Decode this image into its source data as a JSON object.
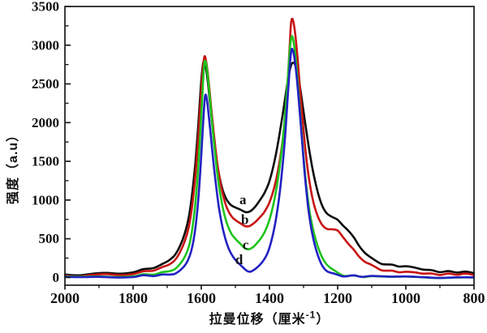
{
  "figure": {
    "background": "#ffffff"
  },
  "chart_data": {
    "type": "line",
    "title": "",
    "xlabel": "拉曼位移（厘米-1）",
    "xlabel_prefix": "拉曼位移（厘米",
    "xlabel_sup": "-1",
    "xlabel_suffix": "）",
    "ylabel": "强度（a.u）",
    "legend_position": "none",
    "grid": false,
    "x_axis": {
      "reversed": true,
      "data_max": 2000,
      "data_min": 800,
      "major_ticks": [
        2000,
        1800,
        1600,
        1400,
        1200,
        1000,
        800
      ],
      "minor_tick_step": 100
    },
    "y_axis": {
      "data_min": 0,
      "data_max": 3500,
      "display_min": -100,
      "major_ticks": [
        0,
        500,
        1000,
        1500,
        2000,
        2500,
        3000,
        3500
      ],
      "minor_tick_step": 250
    },
    "axis_color": "#1a1a1a",
    "series": [
      {
        "id": "a",
        "label": "a",
        "color": "#0d0d0d",
        "label_pos": {
          "x": 1478,
          "y": 1000
        },
        "points": [
          [
            2000,
            40
          ],
          [
            1960,
            40
          ],
          [
            1920,
            42
          ],
          [
            1880,
            48
          ],
          [
            1840,
            58
          ],
          [
            1800,
            75
          ],
          [
            1770,
            95
          ],
          [
            1740,
            125
          ],
          [
            1715,
            165
          ],
          [
            1695,
            225
          ],
          [
            1678,
            300
          ],
          [
            1662,
            410
          ],
          [
            1648,
            570
          ],
          [
            1636,
            800
          ],
          [
            1626,
            1120
          ],
          [
            1617,
            1500
          ],
          [
            1609,
            1950
          ],
          [
            1602,
            2420
          ],
          [
            1596,
            2710
          ],
          [
            1592,
            2780
          ],
          [
            1587,
            2720
          ],
          [
            1580,
            2500
          ],
          [
            1572,
            2160
          ],
          [
            1563,
            1790
          ],
          [
            1554,
            1480
          ],
          [
            1545,
            1260
          ],
          [
            1536,
            1110
          ],
          [
            1525,
            1010
          ],
          [
            1512,
            945
          ],
          [
            1498,
            900
          ],
          [
            1484,
            865
          ],
          [
            1470,
            845
          ],
          [
            1456,
            860
          ],
          [
            1442,
            905
          ],
          [
            1428,
            985
          ],
          [
            1414,
            1100
          ],
          [
            1402,
            1230
          ],
          [
            1392,
            1380
          ],
          [
            1382,
            1570
          ],
          [
            1372,
            1810
          ],
          [
            1362,
            2090
          ],
          [
            1352,
            2390
          ],
          [
            1344,
            2610
          ],
          [
            1337,
            2740
          ],
          [
            1331,
            2770
          ],
          [
            1325,
            2740
          ],
          [
            1318,
            2630
          ],
          [
            1310,
            2440
          ],
          [
            1301,
            2170
          ],
          [
            1291,
            1870
          ],
          [
            1281,
            1580
          ],
          [
            1270,
            1310
          ],
          [
            1258,
            1090
          ],
          [
            1246,
            940
          ],
          [
            1232,
            840
          ],
          [
            1216,
            780
          ],
          [
            1200,
            745
          ],
          [
            1184,
            680
          ],
          [
            1168,
            600
          ],
          [
            1152,
            500
          ],
          [
            1136,
            400
          ],
          [
            1120,
            320
          ],
          [
            1104,
            255
          ],
          [
            1088,
            215
          ],
          [
            1072,
            190
          ],
          [
            1056,
            172
          ],
          [
            1040,
            160
          ],
          [
            1020,
            148
          ],
          [
            1000,
            140
          ],
          [
            975,
            122
          ],
          [
            950,
            106
          ],
          [
            925,
            92
          ],
          [
            900,
            82
          ],
          [
            875,
            74
          ],
          [
            850,
            68
          ],
          [
            825,
            63
          ],
          [
            800,
            60
          ]
        ]
      },
      {
        "id": "b",
        "label": "b",
        "color": "#c81414",
        "label_pos": {
          "x": 1472,
          "y": 745
        },
        "points": [
          [
            2000,
            25
          ],
          [
            1960,
            25
          ],
          [
            1920,
            27
          ],
          [
            1880,
            32
          ],
          [
            1840,
            40
          ],
          [
            1800,
            52
          ],
          [
            1770,
            68
          ],
          [
            1740,
            92
          ],
          [
            1715,
            125
          ],
          [
            1695,
            170
          ],
          [
            1678,
            235
          ],
          [
            1662,
            330
          ],
          [
            1648,
            470
          ],
          [
            1636,
            670
          ],
          [
            1626,
            960
          ],
          [
            1617,
            1330
          ],
          [
            1609,
            1790
          ],
          [
            1602,
            2280
          ],
          [
            1596,
            2650
          ],
          [
            1591,
            2840
          ],
          [
            1586,
            2790
          ],
          [
            1579,
            2560
          ],
          [
            1571,
            2200
          ],
          [
            1562,
            1810
          ],
          [
            1553,
            1470
          ],
          [
            1544,
            1220
          ],
          [
            1535,
            1040
          ],
          [
            1524,
            900
          ],
          [
            1511,
            800
          ],
          [
            1497,
            730
          ],
          [
            1483,
            685
          ],
          [
            1471,
            662
          ],
          [
            1458,
            670
          ],
          [
            1444,
            700
          ],
          [
            1430,
            755
          ],
          [
            1416,
            840
          ],
          [
            1402,
            960
          ],
          [
            1391,
            1090
          ],
          [
            1381,
            1250
          ],
          [
            1371,
            1480
          ],
          [
            1361,
            1790
          ],
          [
            1352,
            2190
          ],
          [
            1345,
            2650
          ],
          [
            1340,
            3050
          ],
          [
            1337,
            3280
          ],
          [
            1334,
            3340
          ],
          [
            1330,
            3300
          ],
          [
            1324,
            3120
          ],
          [
            1317,
            2790
          ],
          [
            1309,
            2360
          ],
          [
            1300,
            1900
          ],
          [
            1291,
            1510
          ],
          [
            1281,
            1190
          ],
          [
            1270,
            940
          ],
          [
            1258,
            780
          ],
          [
            1246,
            690
          ],
          [
            1232,
            640
          ],
          [
            1216,
            620
          ],
          [
            1200,
            605
          ],
          [
            1184,
            530
          ],
          [
            1168,
            430
          ],
          [
            1152,
            340
          ],
          [
            1136,
            262
          ],
          [
            1120,
            205
          ],
          [
            1104,
            162
          ],
          [
            1088,
            130
          ],
          [
            1072,
            108
          ],
          [
            1056,
            92
          ],
          [
            1040,
            82
          ],
          [
            1020,
            74
          ],
          [
            1000,
            68
          ],
          [
            975,
            60
          ],
          [
            950,
            54
          ],
          [
            925,
            49
          ],
          [
            900,
            45
          ],
          [
            875,
            42
          ],
          [
            850,
            39
          ],
          [
            825,
            37
          ],
          [
            800,
            35
          ]
        ]
      },
      {
        "id": "c",
        "label": "c",
        "color": "#1ec41e",
        "label_pos": {
          "x": 1470,
          "y": 420
        },
        "points": [
          [
            2000,
            15
          ],
          [
            1950,
            15
          ],
          [
            1900,
            16
          ],
          [
            1850,
            18
          ],
          [
            1800,
            23
          ],
          [
            1770,
            30
          ],
          [
            1740,
            42
          ],
          [
            1715,
            60
          ],
          [
            1695,
            85
          ],
          [
            1678,
            120
          ],
          [
            1662,
            175
          ],
          [
            1648,
            265
          ],
          [
            1636,
            410
          ],
          [
            1627,
            620
          ],
          [
            1618,
            930
          ],
          [
            1610,
            1350
          ],
          [
            1603,
            1840
          ],
          [
            1597,
            2330
          ],
          [
            1593,
            2650
          ],
          [
            1590,
            2780
          ],
          [
            1586,
            2760
          ],
          [
            1580,
            2560
          ],
          [
            1572,
            2190
          ],
          [
            1563,
            1760
          ],
          [
            1554,
            1380
          ],
          [
            1545,
            1090
          ],
          [
            1536,
            880
          ],
          [
            1525,
            710
          ],
          [
            1512,
            580
          ],
          [
            1498,
            490
          ],
          [
            1484,
            420
          ],
          [
            1472,
            375
          ],
          [
            1462,
            368
          ],
          [
            1450,
            385
          ],
          [
            1438,
            425
          ],
          [
            1426,
            490
          ],
          [
            1414,
            590
          ],
          [
            1402,
            730
          ],
          [
            1391,
            900
          ],
          [
            1381,
            1110
          ],
          [
            1371,
            1400
          ],
          [
            1361,
            1780
          ],
          [
            1352,
            2240
          ],
          [
            1344,
            2720
          ],
          [
            1339,
            3010
          ],
          [
            1335,
            3110
          ],
          [
            1331,
            3080
          ],
          [
            1325,
            2900
          ],
          [
            1318,
            2560
          ],
          [
            1310,
            2110
          ],
          [
            1302,
            1660
          ],
          [
            1293,
            1230
          ],
          [
            1284,
            900
          ],
          [
            1274,
            650
          ],
          [
            1264,
            470
          ],
          [
            1254,
            345
          ],
          [
            1244,
            255
          ],
          [
            1234,
            190
          ],
          [
            1224,
            140
          ],
          [
            1214,
            100
          ],
          [
            1204,
            72
          ],
          [
            1194,
            50
          ],
          [
            1184,
            34
          ],
          [
            1174,
            24
          ],
          [
            1164,
            17
          ],
          [
            1154,
            13
          ],
          [
            1144,
            11
          ],
          [
            1124,
            9
          ],
          [
            1100,
            8
          ],
          [
            1050,
            7
          ],
          [
            1000,
            7
          ],
          [
            950,
            6
          ],
          [
            900,
            6
          ],
          [
            850,
            5
          ],
          [
            800,
            5
          ]
        ]
      },
      {
        "id": "d",
        "label": "d",
        "color": "#2121c2",
        "label_pos": {
          "x": 1489,
          "y": 225
        },
        "points": [
          [
            2000,
            10
          ],
          [
            1950,
            10
          ],
          [
            1900,
            11
          ],
          [
            1850,
            12
          ],
          [
            1800,
            14
          ],
          [
            1770,
            17
          ],
          [
            1740,
            22
          ],
          [
            1715,
            30
          ],
          [
            1695,
            42
          ],
          [
            1678,
            60
          ],
          [
            1662,
            92
          ],
          [
            1650,
            140
          ],
          [
            1640,
            215
          ],
          [
            1630,
            340
          ],
          [
            1621,
            530
          ],
          [
            1613,
            800
          ],
          [
            1606,
            1160
          ],
          [
            1600,
            1570
          ],
          [
            1595,
            1950
          ],
          [
            1591,
            2230
          ],
          [
            1588,
            2350
          ],
          [
            1584,
            2310
          ],
          [
            1579,
            2130
          ],
          [
            1572,
            1830
          ],
          [
            1564,
            1480
          ],
          [
            1556,
            1160
          ],
          [
            1548,
            890
          ],
          [
            1539,
            670
          ],
          [
            1529,
            500
          ],
          [
            1518,
            370
          ],
          [
            1506,
            270
          ],
          [
            1494,
            195
          ],
          [
            1482,
            140
          ],
          [
            1472,
            105
          ],
          [
            1464,
            85
          ],
          [
            1456,
            78
          ],
          [
            1448,
            88
          ],
          [
            1438,
            110
          ],
          [
            1428,
            150
          ],
          [
            1418,
            215
          ],
          [
            1408,
            300
          ],
          [
            1399,
            410
          ],
          [
            1390,
            555
          ],
          [
            1381,
            750
          ],
          [
            1372,
            1020
          ],
          [
            1363,
            1380
          ],
          [
            1354,
            1840
          ],
          [
            1346,
            2380
          ],
          [
            1340,
            2760
          ],
          [
            1336,
            2930
          ],
          [
            1333,
            2950
          ],
          [
            1329,
            2890
          ],
          [
            1323,
            2700
          ],
          [
            1316,
            2380
          ],
          [
            1308,
            1960
          ],
          [
            1300,
            1520
          ],
          [
            1292,
            1130
          ],
          [
            1284,
            820
          ],
          [
            1275,
            570
          ],
          [
            1266,
            390
          ],
          [
            1257,
            265
          ],
          [
            1248,
            180
          ],
          [
            1239,
            125
          ],
          [
            1230,
            88
          ],
          [
            1220,
            62
          ],
          [
            1210,
            45
          ],
          [
            1200,
            34
          ],
          [
            1188,
            26
          ],
          [
            1176,
            20
          ],
          [
            1164,
            16
          ],
          [
            1150,
            13
          ],
          [
            1130,
            11
          ],
          [
            1100,
            10
          ],
          [
            1050,
            9
          ],
          [
            1000,
            8
          ],
          [
            950,
            8
          ],
          [
            900,
            7
          ],
          [
            850,
            7
          ],
          [
            800,
            6
          ]
        ]
      }
    ]
  }
}
